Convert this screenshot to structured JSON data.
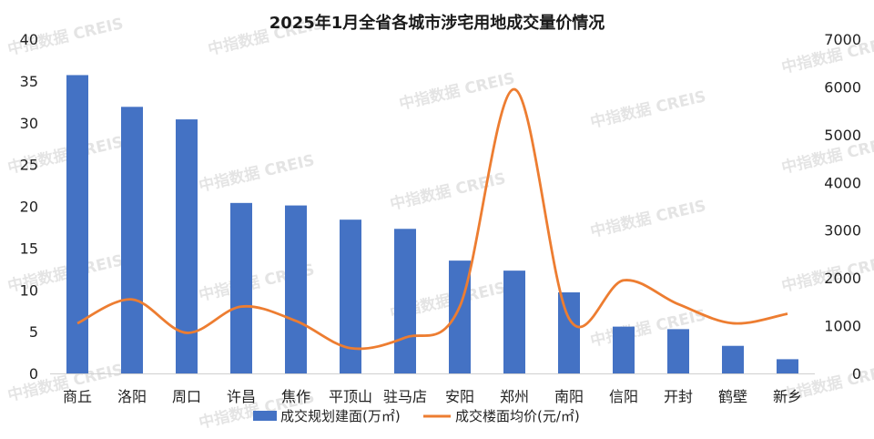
{
  "chart_data": {
    "type": "bar",
    "title": "2025年1月全省各城市涉宅用地成交量价情况",
    "categories": [
      "商丘",
      "洛阳",
      "周口",
      "许昌",
      "焦作",
      "平顶山",
      "驻马店",
      "安阳",
      "郑州",
      "南阳",
      "信阳",
      "开封",
      "鹤壁",
      "新乡"
    ],
    "series": [
      {
        "name": "成交规划建面(万㎡)",
        "type": "bar",
        "axis": "left",
        "color": "#4472c4",
        "values": [
          35.7,
          31.9,
          30.4,
          20.4,
          20.1,
          18.4,
          17.3,
          13.5,
          12.3,
          9.7,
          5.6,
          5.3,
          3.3,
          1.7
        ]
      },
      {
        "name": "成交楼面均价(元/㎡)",
        "type": "line",
        "axis": "right",
        "color": "#ed7d31",
        "values": [
          1050,
          1550,
          850,
          1400,
          1100,
          530,
          750,
          1400,
          5950,
          1150,
          1950,
          1450,
          1050,
          1250
        ]
      }
    ],
    "y_left": {
      "ylim": [
        0,
        40
      ],
      "ticks": [
        "0",
        "5",
        "10",
        "15",
        "20",
        "25",
        "30",
        "35",
        "40"
      ]
    },
    "y_right": {
      "ylim": [
        0,
        7000
      ],
      "ticks": [
        "0",
        "1000",
        "2000",
        "3000",
        "4000",
        "5000",
        "6000",
        "7000"
      ]
    },
    "grid": false,
    "legend_position": "bottom"
  },
  "watermark": "中指数据  CREIS"
}
